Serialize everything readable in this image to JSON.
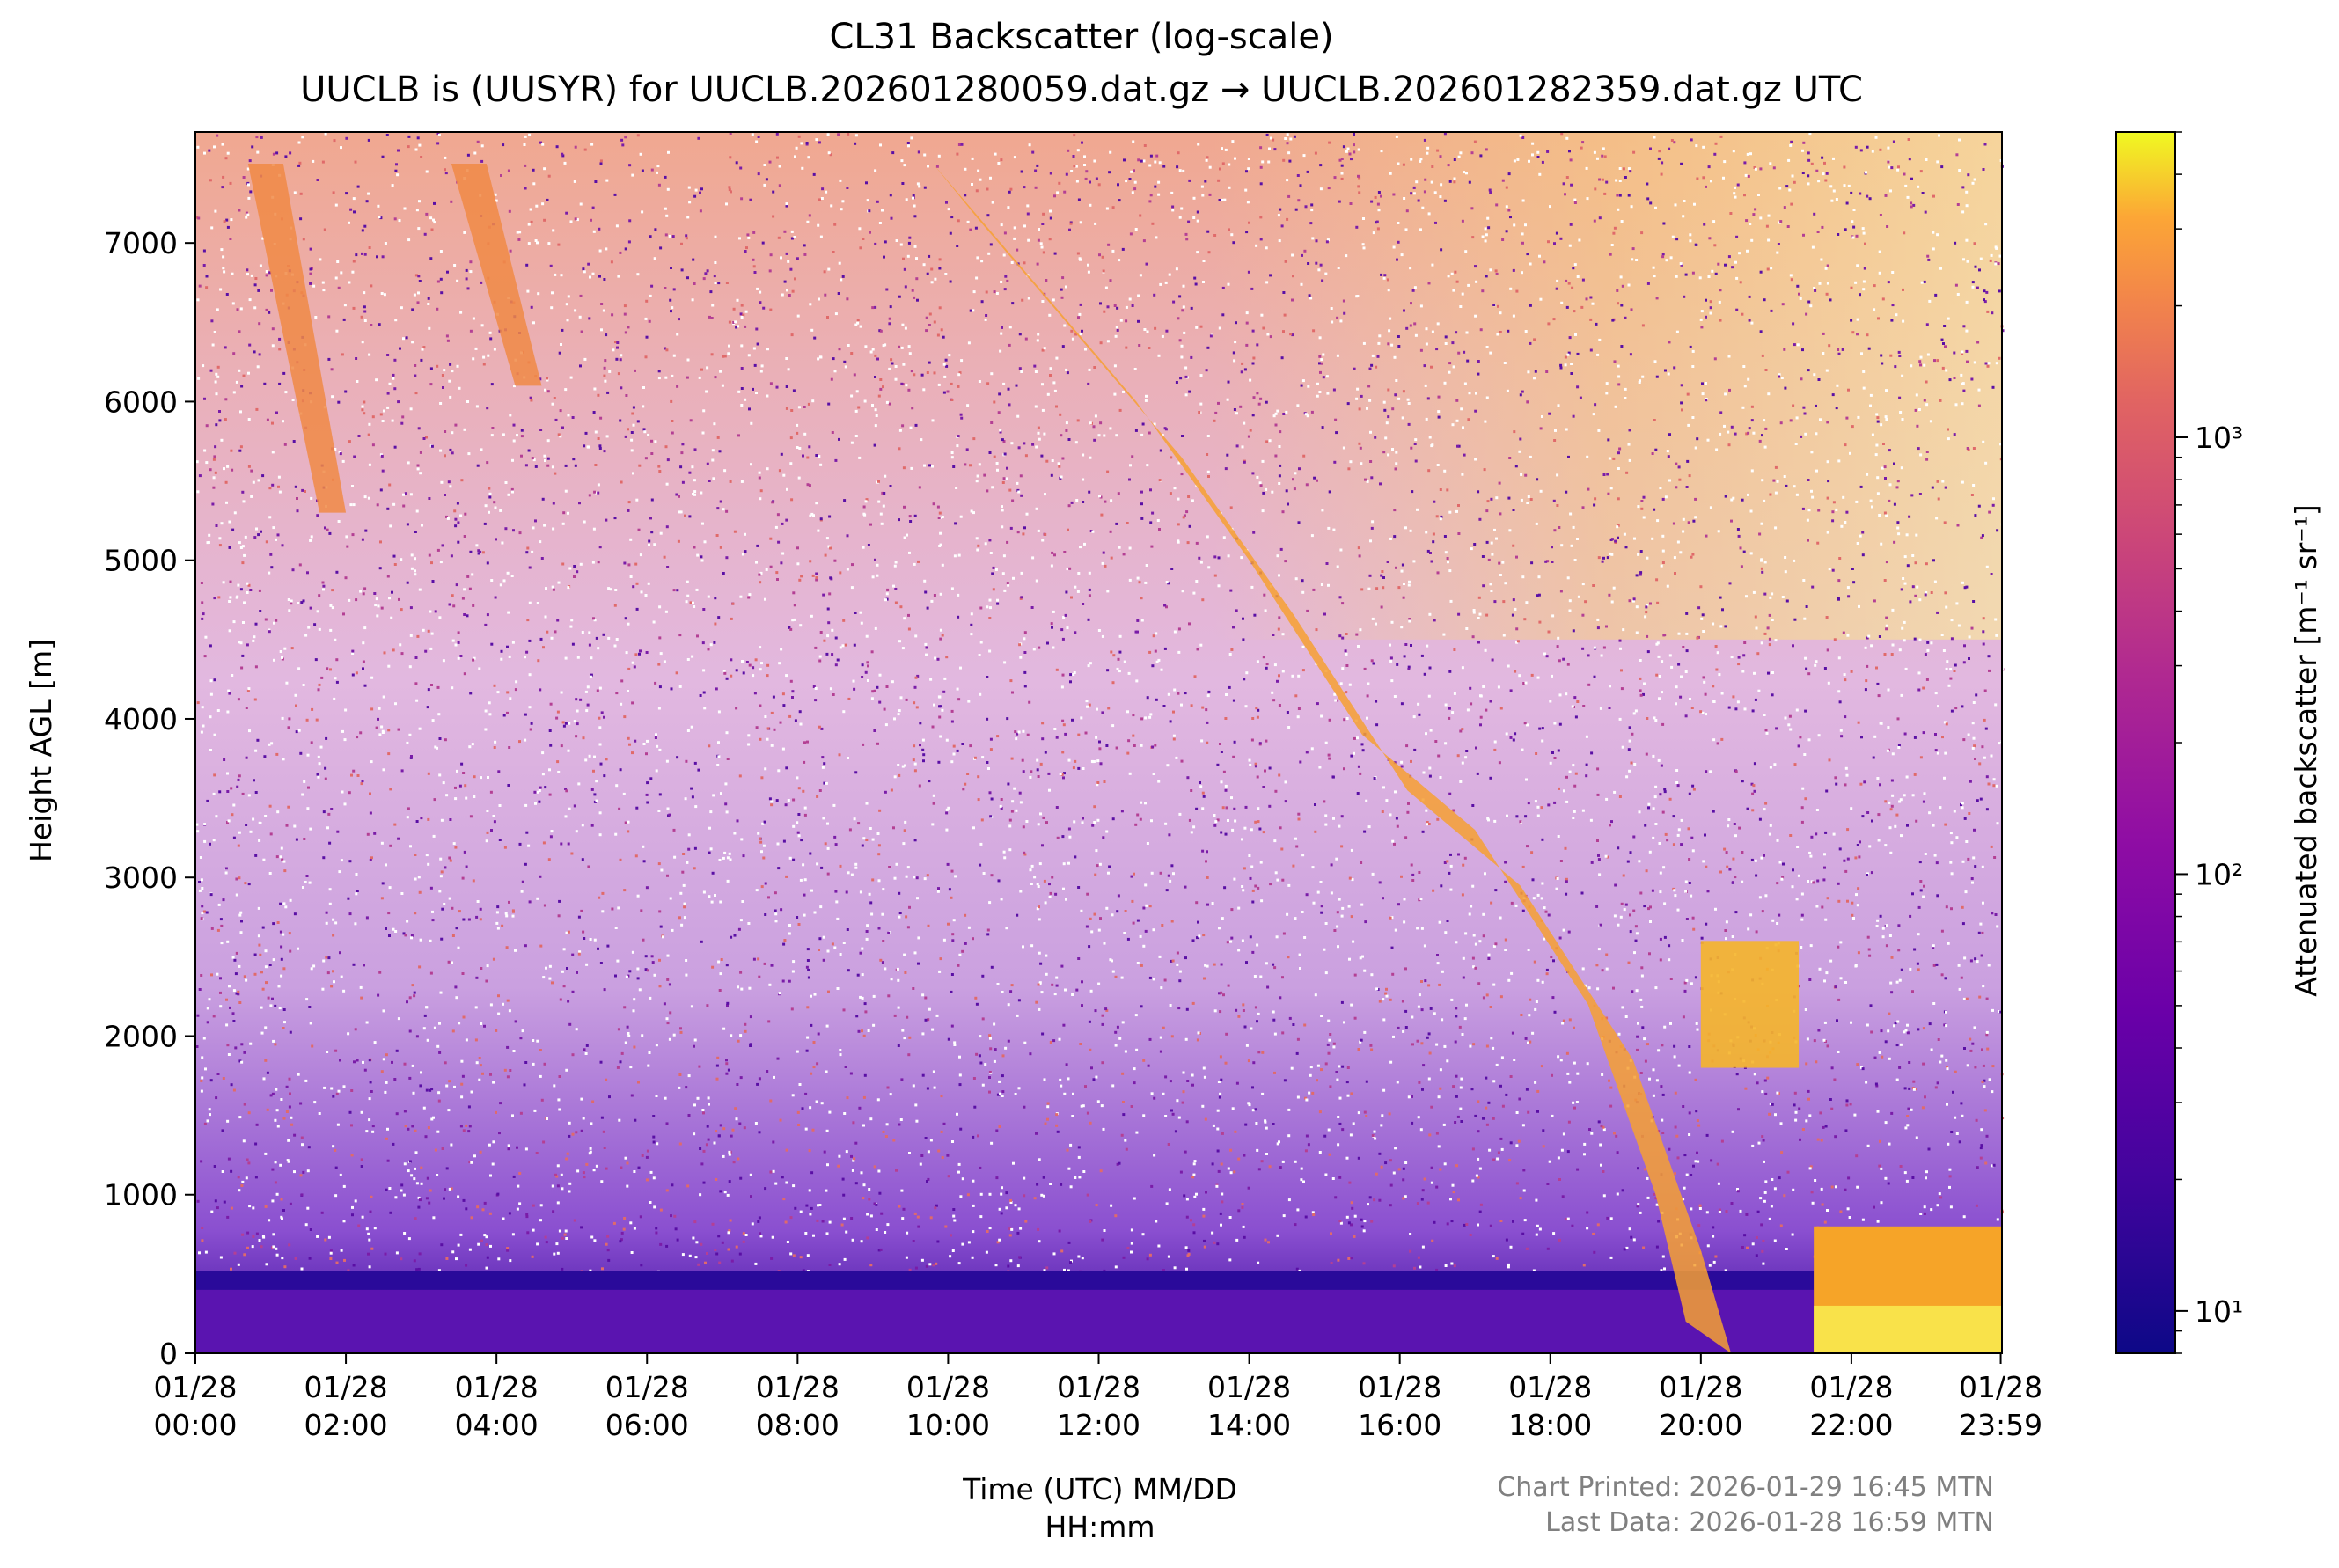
{
  "chart_data": {
    "type": "heatmap",
    "title": "CL31 Backscatter (log-scale)",
    "subtitle": "UUCLB is (UUSYR) for UUCLB.202601280059.dat.gz → UUCLB.202601282359.dat.gz UTC",
    "xlabel": "Time (UTC) MM/DD\nHH:mm",
    "ylabel": "Height AGL [m]",
    "x_range_hours": [
      0,
      24
    ],
    "xlim": [
      "01/28 00:00",
      "01/28 23:59"
    ],
    "ylim": [
      0,
      7700
    ],
    "x_ticks": [
      {
        "hour": 0,
        "date": "01/28",
        "time": "00:00"
      },
      {
        "hour": 2,
        "date": "01/28",
        "time": "02:00"
      },
      {
        "hour": 4,
        "date": "01/28",
        "time": "04:00"
      },
      {
        "hour": 6,
        "date": "01/28",
        "time": "06:00"
      },
      {
        "hour": 8,
        "date": "01/28",
        "time": "08:00"
      },
      {
        "hour": 10,
        "date": "01/28",
        "time": "10:00"
      },
      {
        "hour": 12,
        "date": "01/28",
        "time": "12:00"
      },
      {
        "hour": 14,
        "date": "01/28",
        "time": "14:00"
      },
      {
        "hour": 16,
        "date": "01/28",
        "time": "16:00"
      },
      {
        "hour": 18,
        "date": "01/28",
        "time": "18:00"
      },
      {
        "hour": 20,
        "date": "01/28",
        "time": "20:00"
      },
      {
        "hour": 22,
        "date": "01/28",
        "time": "22:00"
      },
      {
        "hour": 23.983,
        "date": "01/28",
        "time": "23:59"
      }
    ],
    "y_ticks": [
      0,
      1000,
      2000,
      3000,
      4000,
      5000,
      6000,
      7000
    ],
    "colorbar": {
      "label": "Attenuated backscatter [m⁻¹ sr⁻¹]",
      "scale": "log",
      "range": [
        8,
        5000
      ],
      "ticks": [
        {
          "value": 10,
          "label": "10¹"
        },
        {
          "value": 100,
          "label": "10²"
        },
        {
          "value": 1000,
          "label": "10³"
        }
      ],
      "colormap": "plasma"
    },
    "features": [
      {
        "name": "boundary layer",
        "time_hours": [
          0,
          21.5
        ],
        "height_m": [
          0,
          400
        ]
      },
      {
        "name": "descending cloud layer",
        "time_hours": [
          9.8,
          19.8
        ],
        "top_height_m": [
          7500,
          200
        ]
      },
      {
        "name": "high cloud streak",
        "time_hours": [
          0.7,
          2.0
        ],
        "height_m": [
          5300,
          7500
        ]
      },
      {
        "name": "high cloud streak",
        "time_hours": [
          3.4,
          4.6
        ],
        "height_m": [
          6100,
          7500
        ]
      },
      {
        "name": "cloud patch",
        "time_hours": [
          20.0,
          21.3
        ],
        "height_m": [
          1800,
          2600
        ]
      },
      {
        "name": "low cloud",
        "time_hours": [
          21.5,
          24
        ],
        "height_m": [
          0,
          800
        ]
      }
    ]
  },
  "annotations": {
    "printed": "Chart Printed: 2026-01-29 16:45 MTN",
    "last_data": "Last Data: 2026-01-28 16:59 MTN"
  }
}
